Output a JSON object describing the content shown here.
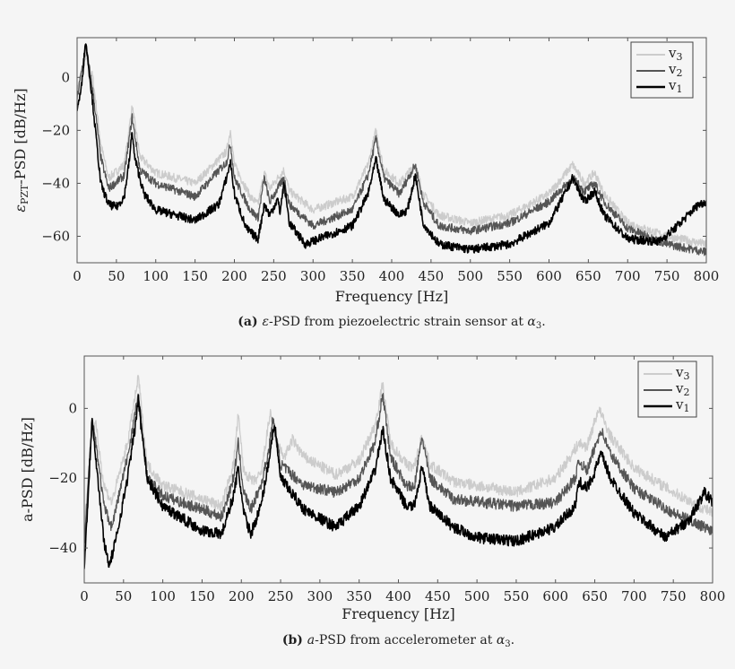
{
  "figure": {
    "background": "#f5f5f5",
    "series_colors": {
      "v3": "#cccccc",
      "v2": "#555555",
      "v1": "#000000"
    }
  },
  "chart_data": [
    {
      "type": "line",
      "panel": "a",
      "caption": {
        "label": "(a)",
        "symbol": "ε",
        "text": "-PSD from piezoelectric strain sensor at ",
        "alpha": "α",
        "alpha_sub": "3",
        "end": "."
      },
      "xlabel": "Frequency [Hz]",
      "ylabel": {
        "symbol": "ε",
        "sub": "PZT",
        "text": "-PSD [dB/Hz]"
      },
      "xlim": [
        0,
        800
      ],
      "ylim": [
        -70,
        15
      ],
      "xticks": [
        0,
        50,
        100,
        150,
        200,
        250,
        300,
        350,
        400,
        450,
        500,
        550,
        600,
        650,
        700,
        750,
        800
      ],
      "yticks": [
        0,
        -20,
        -40,
        -60
      ],
      "ytick_labels": [
        "0",
        "−20",
        "−40",
        "−60"
      ],
      "grid": false,
      "legend_position": "top-right",
      "series": [
        {
          "name": "v3",
          "label": "v",
          "sub": "3",
          "color": "#cccccc",
          "points": [
            [
              0,
              -5
            ],
            [
              11,
              8
            ],
            [
              20,
              0
            ],
            [
              30,
              -25
            ],
            [
              40,
              -38
            ],
            [
              60,
              -33
            ],
            [
              70,
              -11
            ],
            [
              80,
              -30
            ],
            [
              100,
              -36
            ],
            [
              150,
              -40
            ],
            [
              190,
              -28
            ],
            [
              195,
              -20
            ],
            [
              200,
              -33
            ],
            [
              220,
              -45
            ],
            [
              230,
              -48
            ],
            [
              238,
              -36
            ],
            [
              245,
              -42
            ],
            [
              263,
              -35
            ],
            [
              270,
              -43
            ],
            [
              300,
              -50
            ],
            [
              350,
              -45
            ],
            [
              370,
              -33
            ],
            [
              380,
              -20
            ],
            [
              390,
              -35
            ],
            [
              410,
              -40
            ],
            [
              430,
              -33
            ],
            [
              440,
              -44
            ],
            [
              460,
              -52
            ],
            [
              500,
              -55
            ],
            [
              550,
              -52
            ],
            [
              600,
              -44
            ],
            [
              630,
              -33
            ],
            [
              645,
              -40
            ],
            [
              658,
              -36
            ],
            [
              670,
              -44
            ],
            [
              700,
              -55
            ],
            [
              750,
              -60
            ],
            [
              800,
              -63
            ]
          ]
        },
        {
          "name": "v2",
          "label": "v",
          "sub": "2",
          "color": "#555555",
          "points": [
            [
              0,
              -8
            ],
            [
              11,
              12
            ],
            [
              20,
              -5
            ],
            [
              30,
              -30
            ],
            [
              40,
              -42
            ],
            [
              60,
              -37
            ],
            [
              70,
              -15
            ],
            [
              80,
              -35
            ],
            [
              100,
              -40
            ],
            [
              150,
              -45
            ],
            [
              190,
              -32
            ],
            [
              195,
              -25
            ],
            [
              200,
              -38
            ],
            [
              220,
              -50
            ],
            [
              230,
              -53
            ],
            [
              238,
              -38
            ],
            [
              245,
              -47
            ],
            [
              255,
              -42
            ],
            [
              263,
              -38
            ],
            [
              270,
              -48
            ],
            [
              300,
              -56
            ],
            [
              350,
              -50
            ],
            [
              370,
              -37
            ],
            [
              380,
              -23
            ],
            [
              390,
              -38
            ],
            [
              410,
              -44
            ],
            [
              430,
              -33
            ],
            [
              440,
              -47
            ],
            [
              460,
              -56
            ],
            [
              500,
              -58
            ],
            [
              550,
              -55
            ],
            [
              600,
              -47
            ],
            [
              630,
              -38
            ],
            [
              645,
              -43
            ],
            [
              658,
              -40
            ],
            [
              670,
              -47
            ],
            [
              700,
              -57
            ],
            [
              750,
              -63
            ],
            [
              800,
              -66
            ]
          ]
        },
        {
          "name": "v1",
          "label": "v",
          "sub": "1",
          "color": "#000000",
          "points": [
            [
              0,
              -12
            ],
            [
              5,
              -5
            ],
            [
              11,
              14
            ],
            [
              20,
              -10
            ],
            [
              30,
              -40
            ],
            [
              40,
              -48
            ],
            [
              50,
              -49
            ],
            [
              60,
              -45
            ],
            [
              67,
              -30
            ],
            [
              70,
              -20
            ],
            [
              73,
              -30
            ],
            [
              85,
              -44
            ],
            [
              100,
              -50
            ],
            [
              150,
              -54
            ],
            [
              180,
              -48
            ],
            [
              190,
              -38
            ],
            [
              195,
              -32
            ],
            [
              200,
              -44
            ],
            [
              215,
              -57
            ],
            [
              230,
              -61
            ],
            [
              238,
              -48
            ],
            [
              245,
              -52
            ],
            [
              255,
              -46
            ],
            [
              258,
              -51
            ],
            [
              263,
              -40
            ],
            [
              270,
              -55
            ],
            [
              290,
              -63
            ],
            [
              350,
              -56
            ],
            [
              370,
              -44
            ],
            [
              380,
              -31
            ],
            [
              390,
              -46
            ],
            [
              410,
              -52
            ],
            [
              420,
              -50
            ],
            [
              430,
              -37
            ],
            [
              440,
              -55
            ],
            [
              460,
              -63
            ],
            [
              500,
              -65
            ],
            [
              550,
              -63
            ],
            [
              600,
              -55
            ],
            [
              620,
              -44
            ],
            [
              630,
              -38
            ],
            [
              645,
              -47
            ],
            [
              658,
              -43
            ],
            [
              670,
              -52
            ],
            [
              700,
              -61
            ],
            [
              740,
              -62
            ],
            [
              760,
              -57
            ],
            [
              790,
              -48
            ],
            [
              800,
              -47
            ]
          ]
        }
      ]
    },
    {
      "type": "line",
      "panel": "b",
      "caption": {
        "label": "(b)",
        "symbol": "a",
        "text": "-PSD from accelerometer at ",
        "alpha": "α",
        "alpha_sub": "3",
        "end": "."
      },
      "xlabel": "Frequency [Hz]",
      "ylabel": {
        "symbol": "",
        "sub": "",
        "text": "a-PSD [dB/Hz]"
      },
      "xlim": [
        0,
        800
      ],
      "ylim": [
        -50,
        15
      ],
      "xticks": [
        0,
        50,
        100,
        150,
        200,
        250,
        300,
        350,
        400,
        450,
        500,
        550,
        600,
        650,
        700,
        750,
        800
      ],
      "yticks": [
        0,
        -20,
        -40
      ],
      "ytick_labels": [
        "0",
        "−20",
        "−40"
      ],
      "grid": false,
      "legend_position": "top-right",
      "series": [
        {
          "name": "v3",
          "label": "v",
          "sub": "3",
          "color": "#cccccc",
          "points": [
            [
              0,
              -35
            ],
            [
              10,
              -5
            ],
            [
              15,
              -5
            ],
            [
              25,
              -22
            ],
            [
              35,
              -27
            ],
            [
              55,
              -10
            ],
            [
              69,
              9
            ],
            [
              75,
              -5
            ],
            [
              80,
              -16
            ],
            [
              100,
              -22
            ],
            [
              150,
              -26
            ],
            [
              175,
              -28
            ],
            [
              190,
              -16
            ],
            [
              196,
              -2
            ],
            [
              203,
              -18
            ],
            [
              215,
              -21
            ],
            [
              225,
              -19
            ],
            [
              237,
              -1
            ],
            [
              245,
              -10
            ],
            [
              255,
              -14
            ],
            [
              265,
              -9
            ],
            [
              280,
              -14
            ],
            [
              320,
              -19
            ],
            [
              350,
              -15
            ],
            [
              370,
              -5
            ],
            [
              380,
              7
            ],
            [
              390,
              -10
            ],
            [
              410,
              -16
            ],
            [
              420,
              -17
            ],
            [
              430,
              -8
            ],
            [
              440,
              -16
            ],
            [
              470,
              -21
            ],
            [
              550,
              -24
            ],
            [
              600,
              -20
            ],
            [
              630,
              -10
            ],
            [
              640,
              -11
            ],
            [
              655,
              0
            ],
            [
              670,
              -8
            ],
            [
              700,
              -17
            ],
            [
              750,
              -24
            ],
            [
              800,
              -30
            ]
          ]
        },
        {
          "name": "v2",
          "label": "v",
          "sub": "2",
          "color": "#555555",
          "points": [
            [
              0,
              -40
            ],
            [
              10,
              -3
            ],
            [
              15,
              -10
            ],
            [
              25,
              -28
            ],
            [
              35,
              -34
            ],
            [
              55,
              -14
            ],
            [
              69,
              4
            ],
            [
              75,
              -10
            ],
            [
              80,
              -20
            ],
            [
              100,
              -25
            ],
            [
              150,
              -29
            ],
            [
              175,
              -31
            ],
            [
              190,
              -20
            ],
            [
              196,
              -10
            ],
            [
              203,
              -24
            ],
            [
              212,
              -29
            ],
            [
              225,
              -22
            ],
            [
              235,
              -12
            ],
            [
              240,
              -3
            ],
            [
              250,
              -16
            ],
            [
              280,
              -22
            ],
            [
              320,
              -24
            ],
            [
              350,
              -20
            ],
            [
              370,
              -10
            ],
            [
              380,
              4
            ],
            [
              390,
              -14
            ],
            [
              410,
              -22
            ],
            [
              420,
              -23
            ],
            [
              430,
              -8
            ],
            [
              440,
              -20
            ],
            [
              470,
              -26
            ],
            [
              550,
              -28
            ],
            [
              600,
              -27
            ],
            [
              625,
              -20
            ],
            [
              630,
              -15
            ],
            [
              640,
              -18
            ],
            [
              658,
              -6
            ],
            [
              670,
              -13
            ],
            [
              700,
              -23
            ],
            [
              750,
              -30
            ],
            [
              800,
              -35
            ]
          ]
        },
        {
          "name": "v1",
          "label": "v",
          "sub": "1",
          "color": "#000000",
          "points": [
            [
              0,
              -45
            ],
            [
              5,
              -25
            ],
            [
              10,
              -2
            ],
            [
              15,
              -15
            ],
            [
              25,
              -38
            ],
            [
              32,
              -45
            ],
            [
              40,
              -38
            ],
            [
              55,
              -20
            ],
            [
              65,
              -5
            ],
            [
              69,
              3
            ],
            [
              72,
              -5
            ],
            [
              76,
              -10
            ],
            [
              80,
              -20
            ],
            [
              100,
              -28
            ],
            [
              150,
              -35
            ],
            [
              175,
              -36
            ],
            [
              190,
              -25
            ],
            [
              196,
              -17
            ],
            [
              203,
              -30
            ],
            [
              212,
              -36
            ],
            [
              225,
              -28
            ],
            [
              235,
              -15
            ],
            [
              242,
              -4
            ],
            [
              250,
              -20
            ],
            [
              280,
              -29
            ],
            [
              320,
              -34
            ],
            [
              350,
              -28
            ],
            [
              370,
              -18
            ],
            [
              380,
              -6
            ],
            [
              390,
              -20
            ],
            [
              410,
              -28
            ],
            [
              420,
              -28
            ],
            [
              430,
              -17
            ],
            [
              440,
              -28
            ],
            [
              470,
              -34
            ],
            [
              500,
              -37
            ],
            [
              550,
              -38
            ],
            [
              600,
              -34
            ],
            [
              625,
              -28
            ],
            [
              630,
              -21
            ],
            [
              640,
              -23
            ],
            [
              650,
              -18
            ],
            [
              658,
              -13
            ],
            [
              670,
              -20
            ],
            [
              700,
              -30
            ],
            [
              740,
              -37
            ],
            [
              770,
              -32
            ],
            [
              790,
              -24
            ],
            [
              800,
              -27
            ]
          ]
        }
      ]
    }
  ]
}
